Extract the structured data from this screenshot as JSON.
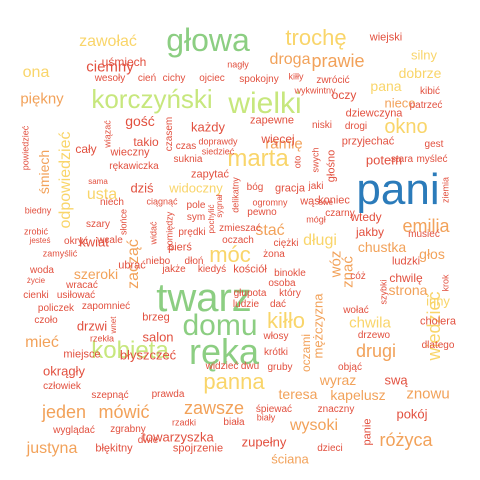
{
  "palette": {
    "blue": "#2b7bba",
    "green": "#8cce82",
    "yellow": "#f9d56a",
    "orange": "#f2a25a",
    "red": "#e2503f",
    "lime": "#c7e77d",
    "peach": "#f6b66d"
  },
  "words": [
    {
      "text": "pani",
      "color": "blue"
    },
    {
      "text": "twarz",
      "color": "green"
    },
    {
      "text": "ręka",
      "color": "green"
    },
    {
      "text": "domu",
      "color": "green"
    },
    {
      "text": "głowa",
      "color": "green"
    },
    {
      "text": "wielki",
      "color": "lime"
    },
    {
      "text": "korczyński",
      "color": "lime"
    },
    {
      "text": "kobieta",
      "color": "lime"
    },
    {
      "text": "panna",
      "color": "yellow"
    },
    {
      "text": "marta",
      "color": "yellow"
    },
    {
      "text": "trochę",
      "color": "yellow"
    },
    {
      "text": "okno",
      "color": "yellow"
    },
    {
      "text": "kiłło",
      "color": "yellow"
    },
    {
      "text": "móc",
      "color": "yellow"
    },
    {
      "text": "zawsze",
      "color": "orange"
    },
    {
      "text": "emilia",
      "color": "orange"
    },
    {
      "text": "drugi",
      "color": "orange"
    },
    {
      "text": "prawie",
      "color": "orange"
    },
    {
      "text": "droga",
      "color": "orange"
    },
    {
      "text": "mówić",
      "color": "orange"
    },
    {
      "text": "różyca",
      "color": "orange"
    },
    {
      "text": "jeden",
      "color": "orange"
    },
    {
      "text": "justyna",
      "color": "orange"
    },
    {
      "text": "zawołać",
      "color": "yellow"
    },
    {
      "text": "wiedzieć",
      "color": "yellow"
    },
    {
      "text": "odpowiedzieć",
      "color": "yellow"
    },
    {
      "text": "długi",
      "color": "yellow"
    },
    {
      "text": "ona",
      "color": "yellow"
    },
    {
      "text": "piękny",
      "color": "orange"
    },
    {
      "text": "ciemny",
      "color": "red"
    },
    {
      "text": "śmiech",
      "color": "orange"
    },
    {
      "text": "mieć",
      "color": "orange"
    },
    {
      "text": "usta",
      "color": "yellow"
    },
    {
      "text": "szeroki",
      "color": "orange"
    },
    {
      "text": "zacząć",
      "color": "orange"
    },
    {
      "text": "wysoki",
      "color": "orange"
    },
    {
      "text": "znowu",
      "color": "orange"
    },
    {
      "text": "stać",
      "color": "orange"
    },
    {
      "text": "ramię",
      "color": "orange"
    },
    {
      "text": "chwila",
      "color": "yellow"
    },
    {
      "text": "wóz",
      "color": "orange"
    },
    {
      "text": "znać",
      "color": "orange"
    },
    {
      "text": "głos",
      "color": "orange"
    },
    {
      "text": "teresa",
      "color": "orange"
    },
    {
      "text": "kapelusz",
      "color": "orange"
    },
    {
      "text": "wyraz",
      "color": "orange"
    },
    {
      "text": "silny",
      "color": "yellow"
    },
    {
      "text": "dobrze",
      "color": "yellow"
    },
    {
      "text": "pana",
      "color": "yellow"
    },
    {
      "text": "nieco",
      "color": "orange"
    },
    {
      "text": "oczy",
      "color": "red"
    },
    {
      "text": "gość",
      "color": "red"
    },
    {
      "text": "każdy",
      "color": "red"
    },
    {
      "text": "potem",
      "color": "red"
    },
    {
      "text": "dziś",
      "color": "red"
    },
    {
      "text": "widoczny",
      "color": "yellow"
    },
    {
      "text": "kwiat",
      "color": "red"
    },
    {
      "text": "strona",
      "color": "orange"
    },
    {
      "text": "chustka",
      "color": "orange"
    },
    {
      "text": "inny",
      "color": "yellow"
    },
    {
      "text": "drzwi",
      "color": "red"
    },
    {
      "text": "salon",
      "color": "red"
    },
    {
      "text": "błyszczeć",
      "color": "red"
    },
    {
      "text": "okrągły",
      "color": "red"
    },
    {
      "text": "pokój",
      "color": "red"
    },
    {
      "text": "ściana",
      "color": "orange"
    },
    {
      "text": "towarzyszka",
      "color": "red"
    },
    {
      "text": "zupełny",
      "color": "red"
    },
    {
      "text": "mężczyzna",
      "color": "orange"
    },
    {
      "text": "oczami",
      "color": "orange"
    },
    {
      "text": "swą",
      "color": "red"
    },
    {
      "text": "wiejski",
      "color": "red"
    },
    {
      "text": "uśmiech",
      "color": "red"
    },
    {
      "text": "wesoły",
      "color": "red"
    },
    {
      "text": "cień",
      "color": "red"
    },
    {
      "text": "cichy",
      "color": "red"
    },
    {
      "text": "ojciec",
      "color": "red"
    },
    {
      "text": "spokojny",
      "color": "red"
    },
    {
      "text": "kiłły",
      "color": "red"
    },
    {
      "text": "zwrócić",
      "color": "red"
    },
    {
      "text": "kibić",
      "color": "red"
    },
    {
      "text": "patrzeć",
      "color": "red"
    },
    {
      "text": "nagły",
      "color": "red"
    },
    {
      "text": "wykwintny",
      "color": "red"
    },
    {
      "text": "zapewne",
      "color": "red"
    },
    {
      "text": "dziewczyna",
      "color": "red"
    },
    {
      "text": "przyjechać",
      "color": "red"
    },
    {
      "text": "niski",
      "color": "red"
    },
    {
      "text": "drogi",
      "color": "red"
    },
    {
      "text": "gest",
      "color": "red"
    },
    {
      "text": "myśleć",
      "color": "red"
    },
    {
      "text": "stara",
      "color": "red"
    },
    {
      "text": "więcej",
      "color": "red"
    },
    {
      "text": "wiązać",
      "color": "red"
    },
    {
      "text": "cały",
      "color": "red"
    },
    {
      "text": "wieczny",
      "color": "red"
    },
    {
      "text": "rękawiczka",
      "color": "red"
    },
    {
      "text": "czas",
      "color": "red"
    },
    {
      "text": "suknia",
      "color": "red"
    },
    {
      "text": "zapytać",
      "color": "red"
    },
    {
      "text": "doprawdy",
      "color": "red"
    },
    {
      "text": "siedzieć",
      "color": "red"
    },
    {
      "text": "powiedzieć",
      "color": "red"
    },
    {
      "text": "niech",
      "color": "red"
    },
    {
      "text": "sama",
      "color": "red"
    },
    {
      "text": "biedny",
      "color": "red"
    },
    {
      "text": "ciągnąć",
      "color": "red"
    },
    {
      "text": "pole",
      "color": "red"
    },
    {
      "text": "ogromny",
      "color": "red"
    },
    {
      "text": "bóg",
      "color": "red"
    },
    {
      "text": "gracja",
      "color": "red"
    },
    {
      "text": "jaki",
      "color": "red"
    },
    {
      "text": "pewno",
      "color": "red"
    },
    {
      "text": "czarny",
      "color": "red"
    },
    {
      "text": "koniec",
      "color": "red"
    },
    {
      "text": "wtedy",
      "color": "red"
    },
    {
      "text": "jakby",
      "color": "red"
    },
    {
      "text": "musieć",
      "color": "red"
    },
    {
      "text": "ludzki",
      "color": "red"
    },
    {
      "text": "zrobić",
      "color": "red"
    },
    {
      "text": "jesteś",
      "color": "red"
    },
    {
      "text": "okryć",
      "color": "red"
    },
    {
      "text": "wcale",
      "color": "red"
    },
    {
      "text": "zamyślić",
      "color": "red"
    },
    {
      "text": "widać",
      "color": "red"
    },
    {
      "text": "prędki",
      "color": "red"
    },
    {
      "text": "zmieszać",
      "color": "red"
    },
    {
      "text": "ciężki",
      "color": "red"
    },
    {
      "text": "żona",
      "color": "red"
    },
    {
      "text": "szary",
      "color": "red"
    },
    {
      "text": "ubrać",
      "color": "red"
    },
    {
      "text": "pierś",
      "color": "red"
    },
    {
      "text": "oczach",
      "color": "red"
    },
    {
      "text": "niebo",
      "color": "red"
    },
    {
      "text": "dłoń",
      "color": "red"
    },
    {
      "text": "jakże",
      "color": "red"
    },
    {
      "text": "kiedyś",
      "color": "red"
    },
    {
      "text": "kościół",
      "color": "red"
    },
    {
      "text": "binokle",
      "color": "red"
    },
    {
      "text": "cóż",
      "color": "red"
    },
    {
      "text": "chwilę",
      "color": "red"
    },
    {
      "text": "woda",
      "color": "red"
    },
    {
      "text": "życie",
      "color": "red"
    },
    {
      "text": "wracać",
      "color": "red"
    },
    {
      "text": "cienki",
      "color": "red"
    },
    {
      "text": "usiłować",
      "color": "red"
    },
    {
      "text": "policzek",
      "color": "red"
    },
    {
      "text": "zapomnieć",
      "color": "red"
    },
    {
      "text": "czoło",
      "color": "red"
    },
    {
      "text": "brzeg",
      "color": "red"
    },
    {
      "text": "osoba",
      "color": "red"
    },
    {
      "text": "głupota",
      "color": "red"
    },
    {
      "text": "który",
      "color": "red"
    },
    {
      "text": "ludzie",
      "color": "red"
    },
    {
      "text": "dać",
      "color": "red"
    },
    {
      "text": "wołać",
      "color": "red"
    },
    {
      "text": "drzewo",
      "color": "red"
    },
    {
      "text": "cholera",
      "color": "red"
    },
    {
      "text": "dlatego",
      "color": "red"
    },
    {
      "text": "rzekła",
      "color": "red"
    },
    {
      "text": "wnet",
      "color": "red"
    },
    {
      "text": "miejsce",
      "color": "red"
    },
    {
      "text": "włosy",
      "color": "red"
    },
    {
      "text": "krótki",
      "color": "red"
    },
    {
      "text": "człowiek",
      "color": "red"
    },
    {
      "text": "szepnąć",
      "color": "red"
    },
    {
      "text": "prawda",
      "color": "red"
    },
    {
      "text": "widzieć",
      "color": "red"
    },
    {
      "text": "dwu",
      "color": "red"
    },
    {
      "text": "gruby",
      "color": "red"
    },
    {
      "text": "objąć",
      "color": "red"
    },
    {
      "text": "śpiewać",
      "color": "red"
    },
    {
      "text": "znaczny",
      "color": "red"
    },
    {
      "text": "wyglądać",
      "color": "red"
    },
    {
      "text": "zgrabny",
      "color": "red"
    },
    {
      "text": "rzadki",
      "color": "red"
    },
    {
      "text": "biała",
      "color": "red"
    },
    {
      "text": "biały",
      "color": "red"
    },
    {
      "text": "dwie",
      "color": "red"
    },
    {
      "text": "błękitny",
      "color": "red"
    },
    {
      "text": "spojrzenie",
      "color": "red"
    },
    {
      "text": "dzieci",
      "color": "red"
    },
    {
      "text": "panie",
      "color": "red"
    },
    {
      "text": "takio",
      "color": "red"
    },
    {
      "text": "czasem",
      "color": "red"
    },
    {
      "text": "słońce",
      "color": "red"
    },
    {
      "text": "pomiędzy",
      "color": "red"
    },
    {
      "text": "pochylić",
      "color": "red"
    },
    {
      "text": "sygnał",
      "color": "red"
    },
    {
      "text": "delikatny",
      "color": "red"
    },
    {
      "text": "oto",
      "color": "red"
    },
    {
      "text": "swych",
      "color": "red"
    },
    {
      "text": "mógł",
      "color": "red"
    },
    {
      "text": "głośno",
      "color": "red"
    },
    {
      "text": "ziemia",
      "color": "red"
    },
    {
      "text": "szybki",
      "color": "red"
    },
    {
      "text": "krok",
      "color": "red"
    },
    {
      "text": "swe",
      "color": "red"
    },
    {
      "text": "sym",
      "color": "red"
    },
    {
      "text": "wąs",
      "color": "red"
    }
  ]
}
